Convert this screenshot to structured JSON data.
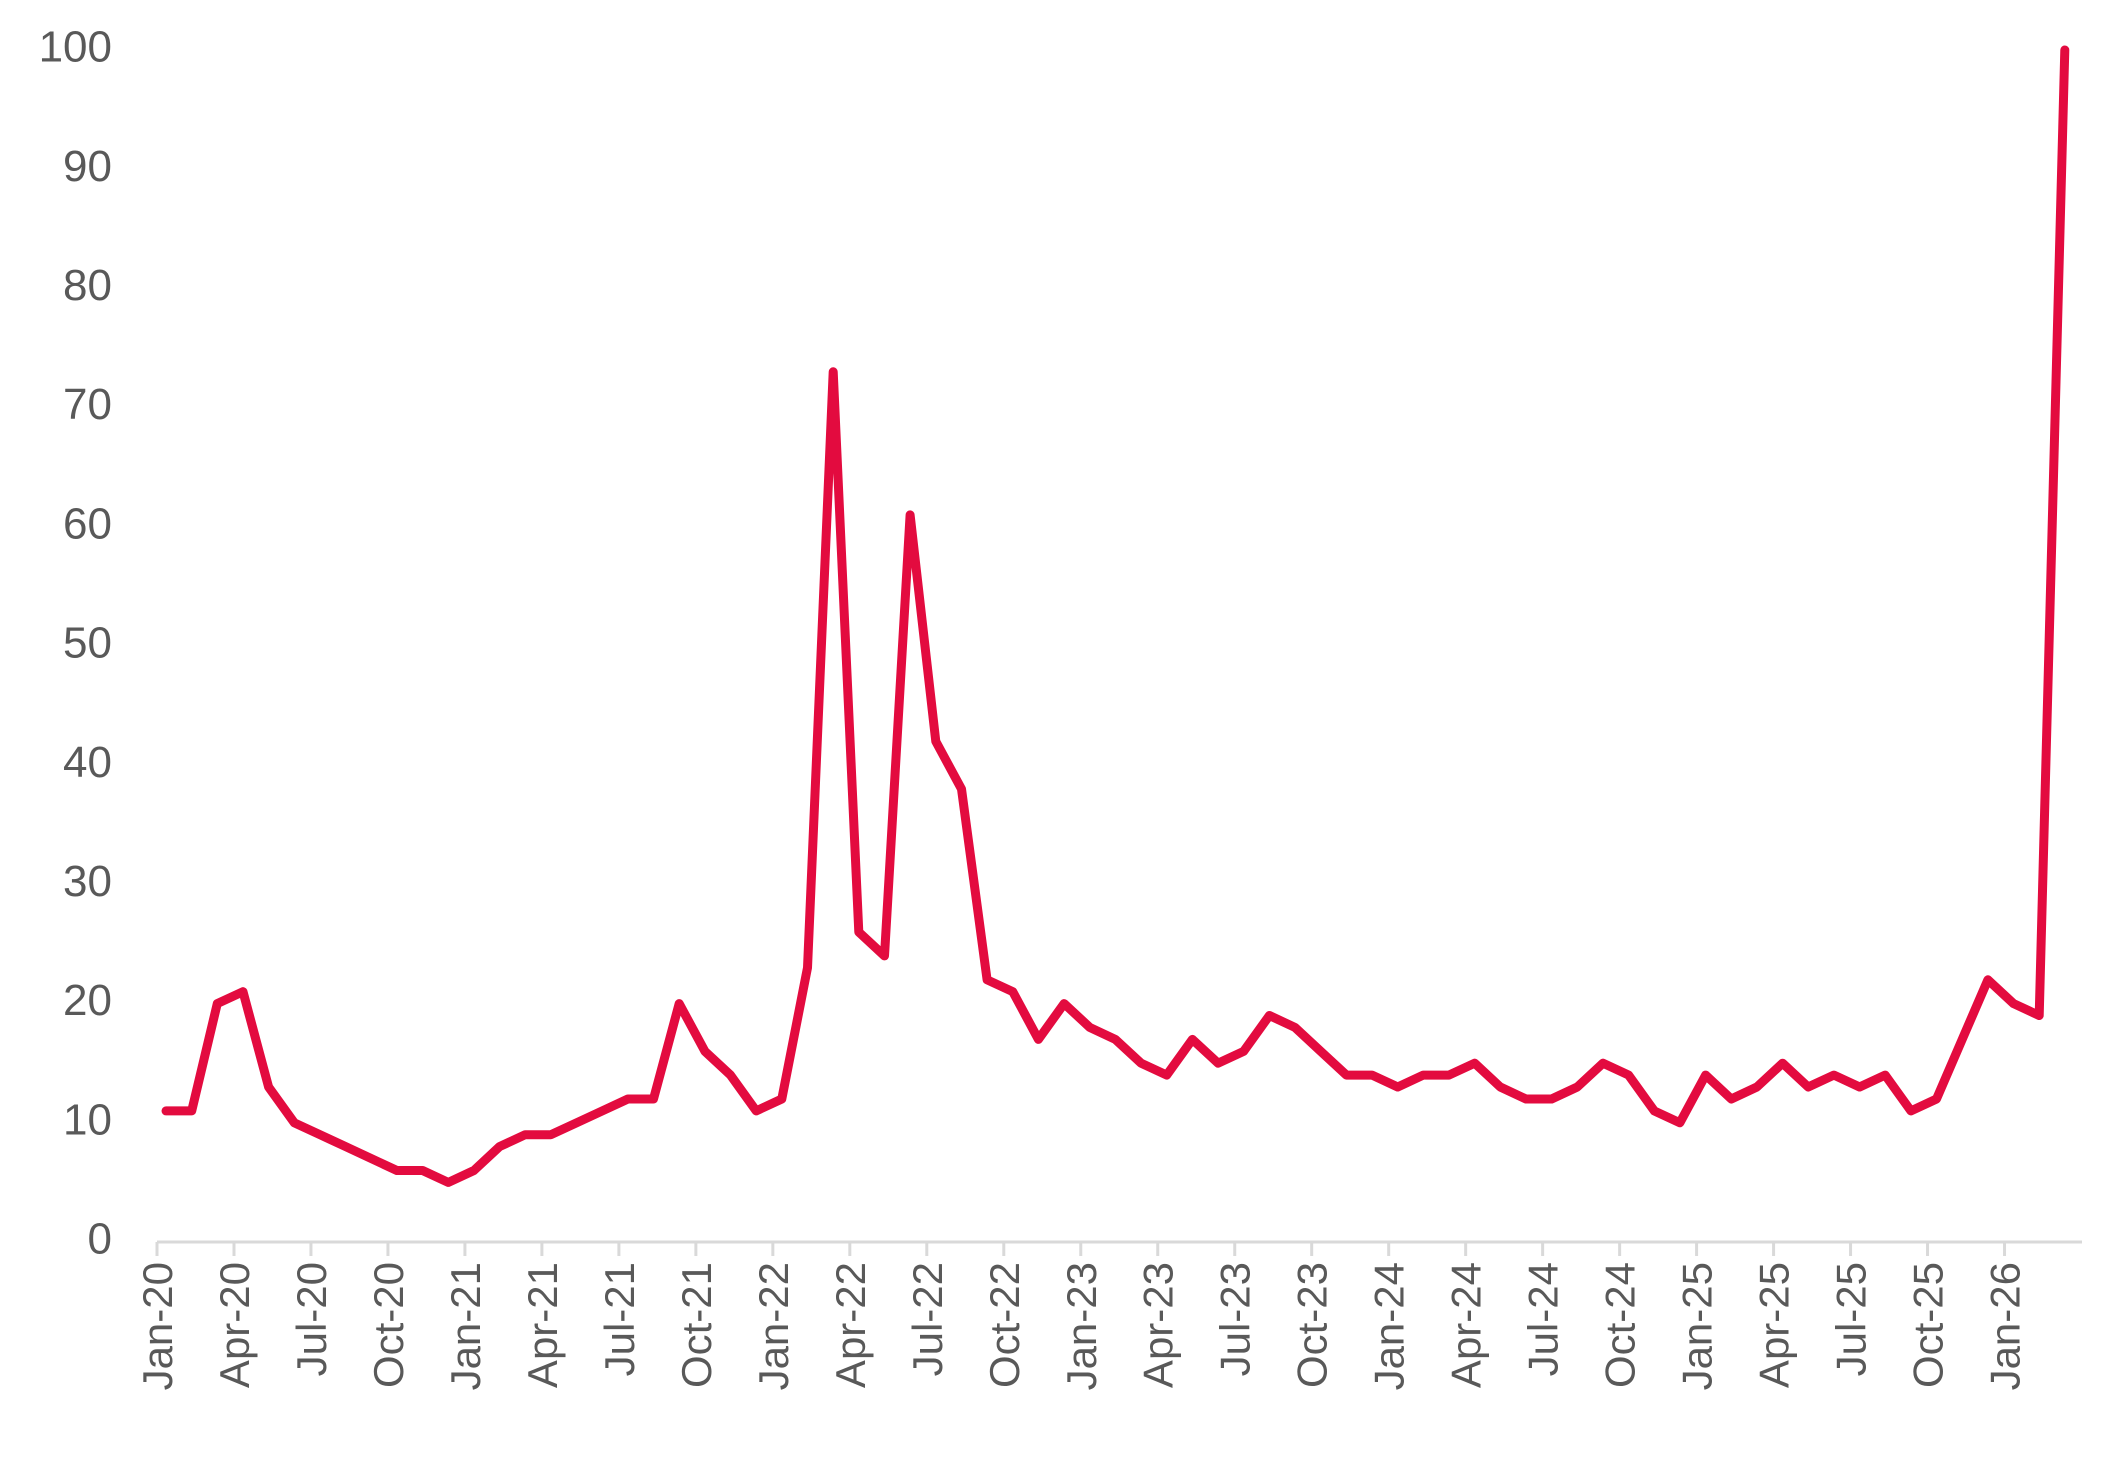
{
  "chart_data": {
    "type": "line",
    "title": "",
    "xlabel": "",
    "ylabel": "",
    "ylim": [
      0,
      100
    ],
    "yticks": [
      0,
      10,
      20,
      30,
      40,
      50,
      60,
      70,
      80,
      90,
      100
    ],
    "xtick_labels": [
      "Jan-20",
      "Apr-20",
      "Jul-20",
      "Oct-20",
      "Jan-21",
      "Apr-21",
      "Jul-21",
      "Oct-21",
      "Jan-22",
      "Apr-22",
      "Jul-22",
      "Oct-22",
      "Jan-23",
      "Apr-23",
      "Jul-23",
      "Oct-23",
      "Jan-24",
      "Apr-24",
      "Jul-24",
      "Oct-24",
      "Jan-25",
      "Apr-25",
      "Jul-25",
      "Oct-25",
      "Jan-26"
    ],
    "grid": false,
    "legend": "none",
    "line_color": "#e30b3f",
    "x": [
      "Jan-20",
      "Feb-20",
      "Mar-20",
      "Apr-20",
      "May-20",
      "Jun-20",
      "Jul-20",
      "Aug-20",
      "Sep-20",
      "Oct-20",
      "Nov-20",
      "Dec-20",
      "Jan-21",
      "Feb-21",
      "Mar-21",
      "Apr-21",
      "May-21",
      "Jun-21",
      "Jul-21",
      "Aug-21",
      "Sep-21",
      "Oct-21",
      "Nov-21",
      "Dec-21",
      "Jan-22",
      "Feb-22",
      "Mar-22",
      "Apr-22",
      "May-22",
      "Jun-22",
      "Jul-22",
      "Aug-22",
      "Sep-22",
      "Oct-22",
      "Nov-22",
      "Dec-22",
      "Jan-23",
      "Feb-23",
      "Mar-23",
      "Apr-23",
      "May-23",
      "Jun-23",
      "Jul-23",
      "Aug-23",
      "Sep-23",
      "Oct-23",
      "Nov-23",
      "Dec-23",
      "Jan-24",
      "Feb-24",
      "Mar-24",
      "Apr-24",
      "May-24",
      "Jun-24",
      "Jul-24",
      "Aug-24",
      "Sep-24",
      "Oct-24",
      "Nov-24",
      "Dec-24",
      "Jan-25",
      "Feb-25",
      "Mar-25",
      "Apr-25",
      "May-25",
      "Jun-25",
      "Jul-25",
      "Aug-25",
      "Sep-25",
      "Oct-25",
      "Nov-25",
      "Dec-25",
      "Jan-26",
      "Feb-26",
      "Mar-26"
    ],
    "series": [
      {
        "values": [
          11,
          11,
          20,
          21,
          13,
          10,
          9,
          8,
          7,
          6,
          6,
          5,
          6,
          8,
          9,
          9,
          10,
          11,
          12,
          12,
          20,
          16,
          14,
          11,
          12,
          23,
          73,
          26,
          24,
          61,
          42,
          38,
          22,
          21,
          17,
          20,
          18,
          17,
          15,
          14,
          17,
          15,
          16,
          19,
          18,
          16,
          14,
          14,
          13,
          14,
          14,
          15,
          13,
          12,
          12,
          13,
          15,
          14,
          11,
          10,
          14,
          12,
          13,
          15,
          13,
          14,
          13,
          14,
          11,
          12,
          17,
          22,
          20,
          19,
          100
        ]
      }
    ]
  }
}
